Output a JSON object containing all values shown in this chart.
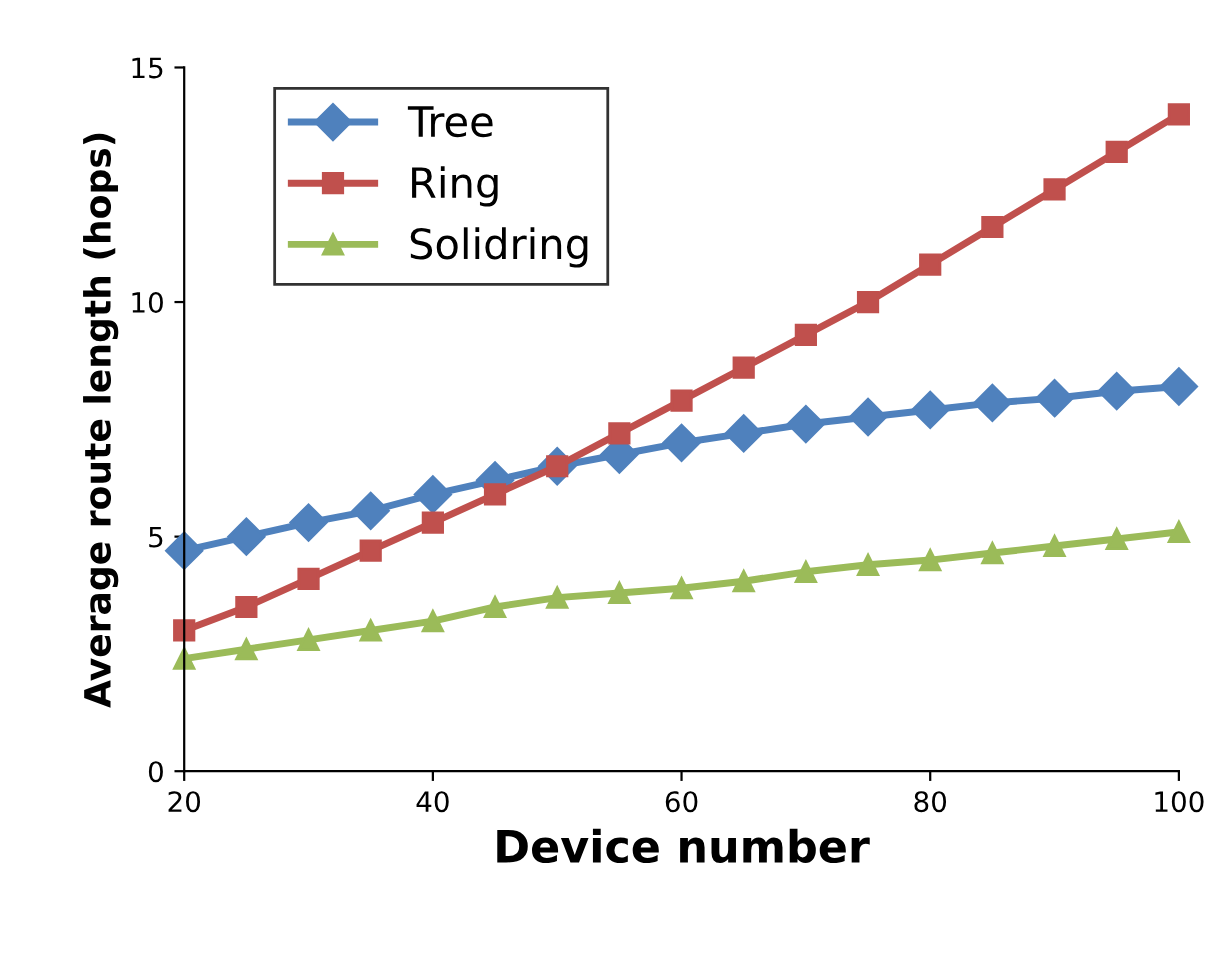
{
  "chart_data": {
    "type": "line",
    "xlabel": "Device number",
    "ylabel": "Average route length (hops)",
    "x": [
      20,
      25,
      30,
      35,
      40,
      45,
      50,
      55,
      60,
      65,
      70,
      75,
      80,
      85,
      90,
      95,
      100
    ],
    "series": [
      {
        "name": "Tree",
        "color": "#4f81bd",
        "marker": "diamond",
        "values": [
          4.7,
          5.0,
          5.3,
          5.55,
          5.9,
          6.2,
          6.5,
          6.75,
          7.0,
          7.2,
          7.4,
          7.55,
          7.7,
          7.85,
          7.95,
          8.1,
          8.2
        ]
      },
      {
        "name": "Ring",
        "color": "#c0504d",
        "marker": "square",
        "values": [
          3.0,
          3.5,
          4.1,
          4.7,
          5.3,
          5.9,
          6.5,
          7.2,
          7.9,
          8.6,
          9.3,
          10.0,
          10.8,
          11.6,
          12.4,
          13.2,
          14.0
        ]
      },
      {
        "name": "Solidring",
        "color": "#9bbb59",
        "marker": "triangle",
        "values": [
          2.4,
          2.6,
          2.8,
          3.0,
          3.2,
          3.5,
          3.7,
          3.8,
          3.9,
          4.05,
          4.25,
          4.4,
          4.5,
          4.65,
          4.8,
          4.95,
          5.1
        ]
      }
    ],
    "xlim": [
      20,
      100
    ],
    "xticks": [
      20,
      40,
      60,
      80,
      100
    ],
    "ylim": [
      0,
      15
    ],
    "yticks": [
      0,
      5,
      10,
      15
    ],
    "grid": false,
    "legend": "top left",
    "line_style": "solid"
  }
}
